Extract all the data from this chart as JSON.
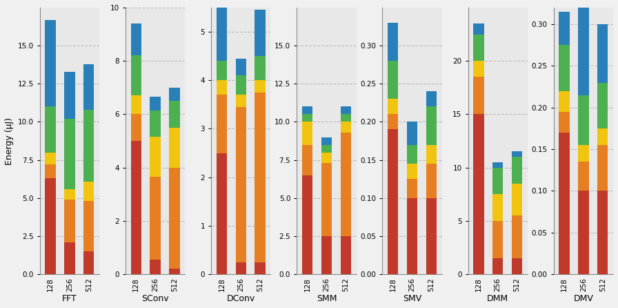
{
  "workloads": [
    "FFT",
    "SConv",
    "DConv",
    "SMM",
    "SMV",
    "DMM",
    "DMV"
  ],
  "cache_sizes": [
    "128",
    "256",
    "512"
  ],
  "comp_colors": [
    "#c0392b",
    "#e67e22",
    "#f1c40f",
    "#4caf50",
    "#2980b9"
  ],
  "data": {
    "FFT": {
      "128": [
        6.3,
        0.9,
        0.8,
        3.0,
        5.7
      ],
      "256": [
        2.1,
        2.8,
        0.7,
        4.6,
        3.1
      ],
      "512": [
        1.5,
        3.3,
        1.3,
        4.7,
        3.0
      ]
    },
    "SConv": {
      "128": [
        5.0,
        1.0,
        0.7,
        1.5,
        1.2
      ],
      "256": [
        0.55,
        3.1,
        1.5,
        1.0,
        0.5
      ],
      "512": [
        0.2,
        3.8,
        1.5,
        1.0,
        0.5
      ]
    },
    "DConv": {
      "128": [
        2.5,
        1.2,
        0.3,
        0.4,
        1.1
      ],
      "256": [
        0.25,
        3.2,
        0.25,
        0.4,
        0.35
      ],
      "512": [
        0.25,
        3.5,
        0.25,
        0.5,
        0.95
      ]
    },
    "SMM": {
      "128": [
        6.5,
        2.0,
        1.5,
        0.5,
        0.5
      ],
      "256": [
        2.5,
        4.8,
        0.7,
        0.5,
        0.5
      ],
      "512": [
        2.5,
        6.8,
        0.7,
        0.5,
        0.5
      ]
    },
    "SMV": {
      "128": [
        0.19,
        0.02,
        0.02,
        0.05,
        0.05
      ],
      "256": [
        0.1,
        0.025,
        0.02,
        0.025,
        0.03
      ],
      "512": [
        0.1,
        0.045,
        0.025,
        0.05,
        0.02
      ]
    },
    "DMM": {
      "128": [
        15.0,
        3.5,
        1.5,
        2.5,
        1.0
      ],
      "256": [
        1.5,
        3.5,
        2.5,
        2.5,
        0.5
      ],
      "512": [
        1.5,
        4.0,
        3.0,
        2.5,
        0.5
      ]
    },
    "DMV": {
      "128": [
        0.17,
        0.025,
        0.025,
        0.055,
        0.04
      ],
      "256": [
        0.1,
        0.035,
        0.02,
        0.06,
        0.115
      ],
      "512": [
        0.1,
        0.055,
        0.02,
        0.055,
        0.07
      ]
    }
  },
  "ylims": {
    "FFT": [
      0,
      17.5
    ],
    "SConv": [
      0,
      10
    ],
    "DConv": [
      0,
      5.5
    ],
    "SMM": [
      0,
      17.5
    ],
    "SMV": [
      0,
      0.35
    ],
    "DMM": [
      0,
      25
    ],
    "DMV": [
      0,
      0.32
    ]
  },
  "yticks": {
    "FFT": [
      0.0,
      2.5,
      5.0,
      7.5,
      10.0,
      12.5,
      15.0
    ],
    "SConv": [
      0,
      2,
      4,
      6,
      8,
      10
    ],
    "DConv": [
      0,
      1,
      2,
      3,
      4,
      5
    ],
    "SMM": [
      0.0,
      2.5,
      5.0,
      7.5,
      10.0,
      12.5,
      15.0
    ],
    "SMV": [
      0.0,
      0.05,
      0.1,
      0.15,
      0.2,
      0.25,
      0.3
    ],
    "DMM": [
      0,
      5,
      10,
      15,
      20
    ],
    "DMV": [
      0.0,
      0.05,
      0.1,
      0.15,
      0.2,
      0.25,
      0.3
    ]
  },
  "ylabel": "Energy (μJ)",
  "plot_bg": "#e8e8e8",
  "fig_bg": "#f0f0f0"
}
